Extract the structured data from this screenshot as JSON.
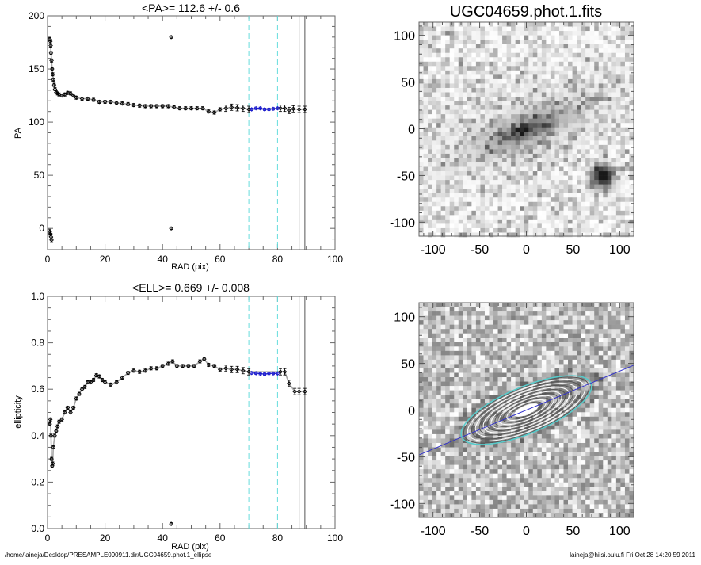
{
  "footer": {
    "path": "/home/laineja/Desktop/PRESAMPLE090911.dir/UGC04659.phot.1_ellipse",
    "stamp": "laineja@hiisi.oulu.fi  Fri Oct 28 14:20:59 2011"
  },
  "chart_data": [
    {
      "type": "scatter",
      "title": "<PA>= 112.6 +/-   0.6",
      "xlabel": "RAD (pix)",
      "ylabel": "PA",
      "xlim": [
        0,
        100
      ],
      "ylim": [
        -20,
        200
      ],
      "xticks": [
        "0",
        "20",
        "40",
        "60",
        "80",
        "100"
      ],
      "yticks": [
        "0",
        "50",
        "100",
        "150",
        "200"
      ],
      "grid": false,
      "fit_range": [
        70,
        80
      ],
      "outer_limits": [
        87.5,
        89.5
      ],
      "colors": {
        "points": "#000000",
        "fit_points": "#1a1acc",
        "fit_range_lines": "#66dddd",
        "limit_lines": "#555555"
      },
      "points": [
        [
          0.8,
          178
        ],
        [
          1.0,
          176
        ],
        [
          1.1,
          172
        ],
        [
          1.2,
          165
        ],
        [
          1.4,
          158
        ],
        [
          1.6,
          150
        ],
        [
          1.8,
          145
        ],
        [
          2.0,
          140
        ],
        [
          2.3,
          135
        ],
        [
          2.6,
          131
        ],
        [
          3.0,
          128
        ],
        [
          3.5,
          127
        ],
        [
          4,
          126
        ],
        [
          5,
          125
        ],
        [
          6,
          126
        ],
        [
          7,
          127.5
        ],
        [
          8,
          127
        ],
        [
          9,
          125
        ],
        [
          10,
          123
        ],
        [
          12,
          122
        ],
        [
          14,
          122
        ],
        [
          16,
          121
        ],
        [
          18,
          119
        ],
        [
          20,
          119
        ],
        [
          22,
          119
        ],
        [
          24,
          118
        ],
        [
          26,
          117.5
        ],
        [
          28,
          117
        ],
        [
          30,
          116
        ],
        [
          32,
          115.5
        ],
        [
          34,
          115
        ],
        [
          36,
          115
        ],
        [
          38,
          115
        ],
        [
          40,
          115
        ],
        [
          42,
          115
        ],
        [
          44,
          114
        ],
        [
          46,
          113
        ],
        [
          48,
          113
        ],
        [
          50,
          113
        ],
        [
          52,
          113
        ],
        [
          54,
          113
        ],
        [
          56,
          110
        ],
        [
          58,
          109
        ],
        [
          60,
          112
        ],
        [
          62,
          113
        ],
        [
          64,
          114
        ],
        [
          66,
          113.5
        ],
        [
          68,
          113
        ],
        [
          70,
          112
        ],
        [
          81,
          113
        ],
        [
          82.5,
          113
        ],
        [
          84,
          111
        ],
        [
          85.5,
          112.5
        ],
        [
          87.5,
          112
        ],
        [
          89.5,
          112
        ]
      ],
      "wrapped_points": [
        [
          0.8,
          -3
        ],
        [
          1.0,
          -5
        ],
        [
          1.2,
          -8
        ],
        [
          1.4,
          -11
        ]
      ],
      "outliers": [
        [
          43,
          180
        ],
        [
          43,
          0
        ]
      ],
      "fit_points": [
        [
          71,
          112
        ],
        [
          72.5,
          113
        ],
        [
          74,
          113
        ],
        [
          75.5,
          112
        ],
        [
          77,
          112
        ],
        [
          78.5,
          112.5
        ],
        [
          80,
          113
        ]
      ]
    },
    {
      "type": "scatter",
      "title": "<ELL>= 0.669 +/-  0.008",
      "xlabel": "RAD (pix)",
      "ylabel": "ellipticity",
      "xlim": [
        0,
        100
      ],
      "ylim": [
        0,
        1
      ],
      "xticks": [
        "0",
        "20",
        "40",
        "60",
        "80",
        "100"
      ],
      "yticks": [
        "0.0",
        "0.2",
        "0.4",
        "0.6",
        "0.8",
        "1.0"
      ],
      "grid": false,
      "fit_range": [
        70,
        80
      ],
      "outer_limits": [
        87.5,
        89.5
      ],
      "colors": {
        "points": "#000000",
        "fit_points": "#1a1acc",
        "fit_range_lines": "#66dddd",
        "limit_lines": "#555555"
      },
      "points": [
        [
          0.8,
          0.45
        ],
        [
          1.0,
          0.47
        ],
        [
          1.2,
          0.4
        ],
        [
          1.4,
          0.3
        ],
        [
          1.6,
          0.27
        ],
        [
          1.8,
          0.28
        ],
        [
          2.0,
          0.35
        ],
        [
          2.5,
          0.4
        ],
        [
          3,
          0.42
        ],
        [
          3.5,
          0.44
        ],
        [
          4,
          0.46
        ],
        [
          5,
          0.47
        ],
        [
          6,
          0.5
        ],
        [
          7,
          0.52
        ],
        [
          8,
          0.5
        ],
        [
          9,
          0.52
        ],
        [
          10,
          0.56
        ],
        [
          11,
          0.58
        ],
        [
          12,
          0.6
        ],
        [
          13,
          0.61
        ],
        [
          14,
          0.63
        ],
        [
          15,
          0.63
        ],
        [
          16,
          0.64
        ],
        [
          17,
          0.66
        ],
        [
          18,
          0.655
        ],
        [
          19,
          0.64
        ],
        [
          20,
          0.63
        ],
        [
          22,
          0.62
        ],
        [
          24,
          0.63
        ],
        [
          26,
          0.65
        ],
        [
          28,
          0.67
        ],
        [
          30,
          0.68
        ],
        [
          32,
          0.675
        ],
        [
          34,
          0.68
        ],
        [
          36,
          0.69
        ],
        [
          38,
          0.69
        ],
        [
          40,
          0.7
        ],
        [
          42,
          0.71
        ],
        [
          43.5,
          0.72
        ],
        [
          45,
          0.7
        ],
        [
          47,
          0.7
        ],
        [
          49,
          0.7
        ],
        [
          51,
          0.7
        ],
        [
          53,
          0.72
        ],
        [
          54.5,
          0.73
        ],
        [
          56,
          0.705
        ],
        [
          58,
          0.7
        ],
        [
          60,
          0.685
        ],
        [
          62,
          0.69
        ],
        [
          64,
          0.685
        ],
        [
          66,
          0.685
        ],
        [
          68,
          0.68
        ],
        [
          70,
          0.675
        ],
        [
          81,
          0.675
        ],
        [
          82.5,
          0.675
        ],
        [
          84,
          0.625
        ],
        [
          86,
          0.59
        ],
        [
          87.5,
          0.59
        ],
        [
          89.5,
          0.59
        ]
      ],
      "outliers": [
        [
          43,
          0.02
        ]
      ],
      "fit_points": [
        [
          71,
          0.67
        ],
        [
          72.5,
          0.669
        ],
        [
          74,
          0.667
        ],
        [
          75.5,
          0.665
        ],
        [
          77,
          0.668
        ],
        [
          78.5,
          0.668
        ],
        [
          80,
          0.668
        ]
      ]
    },
    {
      "type": "heatmap",
      "title": "UGC04659.phot.1.fits",
      "xlim": [
        -115,
        115
      ],
      "ylim": [
        -115,
        115
      ],
      "xticks": [
        "-100",
        "-50",
        "0",
        "50",
        "100"
      ],
      "yticks": [
        "-100",
        "-50",
        "0",
        "50",
        "100"
      ],
      "colormap": "inverted grayscale",
      "galaxy_center": [
        0,
        0
      ],
      "star": [
        82,
        -50
      ]
    },
    {
      "type": "heatmap",
      "xlim": [
        -115,
        115
      ],
      "ylim": [
        -115,
        115
      ],
      "xticks": [
        "-100",
        "-50",
        "0",
        "50",
        "100"
      ],
      "yticks": [
        "-100",
        "-50",
        "0",
        "50",
        "100"
      ],
      "colormap": "grayscale residual with isophote contours",
      "position_angle": 112.6,
      "ellipticity": 0.669,
      "colors": {
        "major_axis_line": "#3333cc",
        "fit_ellipse": "#55cccc",
        "contours": "#ffffff"
      }
    }
  ]
}
